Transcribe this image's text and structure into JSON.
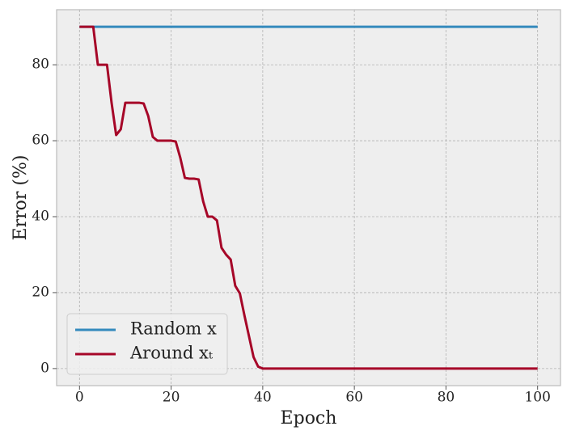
{
  "chart_data": {
    "type": "line",
    "xlabel": "Epoch",
    "ylabel": "Error (%)",
    "xlim": [
      -5,
      105
    ],
    "ylim": [
      -4.5,
      94.5
    ],
    "xticks": [
      0,
      20,
      40,
      60,
      80,
      100
    ],
    "yticks": [
      0,
      20,
      40,
      60,
      80
    ],
    "grid": true,
    "legend": "lower left",
    "series": [
      {
        "name": "Random x",
        "color": "#348abd",
        "x": [
          0,
          100
        ],
        "values": [
          90,
          90
        ]
      },
      {
        "name": "Around xₜ",
        "color": "#a60628",
        "x": [
          0,
          1,
          2,
          3,
          4,
          5,
          6,
          7,
          8,
          9,
          10,
          11,
          12,
          13,
          14,
          15,
          16,
          17,
          18,
          19,
          20,
          21,
          22,
          23,
          24,
          25,
          26,
          27,
          28,
          29,
          30,
          31,
          32,
          33,
          34,
          35,
          36,
          37,
          38,
          39,
          40,
          100
        ],
        "values": [
          90,
          90,
          90,
          90,
          80,
          80,
          80,
          70,
          61.5,
          63,
          70,
          70,
          70,
          70,
          69.8,
          66.5,
          61,
          60,
          60,
          60,
          60,
          59.8,
          55.5,
          50.2,
          50,
          50,
          49.8,
          44,
          40,
          40,
          39,
          31.8,
          30,
          28.7,
          21.8,
          19.8,
          14,
          8.5,
          3,
          0.5,
          0,
          0
        ]
      }
    ]
  }
}
